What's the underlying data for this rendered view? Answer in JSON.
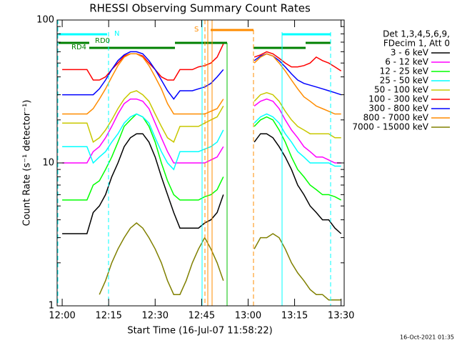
{
  "chart_data": {
    "type": "line",
    "title": "RHESSI Observing Summary Count Rates",
    "x_label": "Start Time (16-Jul-07 11:58:22)",
    "y_label": "Count Rate (s⁻¹ detector⁻¹)",
    "timestamp": "16-Oct-2021 01:35",
    "legend_header": [
      "Det 1,3,4,5,6,9,",
      "FDecim 1, Att 0"
    ],
    "annotations": [
      "N",
      "RD0",
      "RD4",
      "S"
    ],
    "log_y": true,
    "legend": "right",
    "xlim": [
      "11:58:22",
      "13:31"
    ],
    "xticks": [
      "12:00",
      "12:15",
      "12:30",
      "12:45",
      "13:00",
      "13:15",
      "13:30"
    ],
    "ylim": [
      1,
      100
    ],
    "yticks": [
      1,
      10,
      100
    ],
    "x": [
      "12:00",
      "12:02",
      "12:04",
      "12:06",
      "12:08",
      "12:10",
      "12:12",
      "12:14",
      "12:16",
      "12:18",
      "12:20",
      "12:22",
      "12:24",
      "12:26",
      "12:28",
      "12:30",
      "12:32",
      "12:34",
      "12:36",
      "12:38",
      "12:40",
      "12:42",
      "12:44",
      "12:46",
      "12:48",
      "12:50",
      "12:52",
      "12:54",
      "12:56",
      "12:58",
      "13:00",
      "13:02",
      "13:04",
      "13:06",
      "13:08",
      "13:10",
      "13:12",
      "13:14",
      "13:16",
      "13:18",
      "13:20",
      "13:22",
      "13:24",
      "13:26",
      "13:28",
      "13:30"
    ],
    "series": [
      {
        "name": "3 - 6 keV",
        "color": "#000000",
        "values": [
          3.2,
          3.2,
          3.2,
          3.2,
          3.2,
          4.5,
          5,
          6,
          8,
          10,
          13,
          15,
          16,
          16,
          14,
          11,
          8,
          6,
          4.5,
          3.5,
          3.5,
          3.5,
          3.5,
          3.8,
          4,
          4.5,
          6,
          null,
          null,
          null,
          null,
          14,
          16,
          16,
          15,
          13,
          11,
          9,
          7,
          6,
          5,
          4.5,
          4,
          4,
          3.5,
          3.2
        ]
      },
      {
        "name": "6 - 12 keV",
        "color": "#ff00ff",
        "values": [
          10,
          10,
          10,
          10,
          10,
          12,
          13,
          15,
          18,
          22,
          26,
          28,
          28,
          27,
          24,
          19,
          15,
          12,
          10,
          10,
          10,
          10,
          10,
          10,
          10.5,
          11,
          13,
          null,
          null,
          null,
          null,
          25,
          27,
          28,
          27,
          24,
          20,
          17,
          15,
          13,
          12,
          11,
          11,
          10.5,
          10,
          10
        ]
      },
      {
        "name": "12 - 25 keV",
        "color": "#00ff00",
        "values": [
          5.5,
          5.5,
          5.5,
          5.5,
          5.5,
          7,
          7.5,
          9,
          11,
          14,
          18,
          20,
          22,
          21,
          18,
          14,
          10,
          7.5,
          6,
          5.5,
          5.5,
          5.5,
          5.5,
          5.8,
          6,
          6.5,
          8,
          null,
          null,
          null,
          null,
          18,
          20,
          21,
          20,
          17,
          14,
          11,
          9,
          8,
          7,
          6.5,
          6,
          6,
          5.8,
          5.5
        ]
      },
      {
        "name": "25 - 50 keV",
        "color": "#00ffff",
        "values": [
          13,
          13,
          13,
          13,
          13,
          10,
          11,
          12,
          14,
          16,
          19,
          21,
          22,
          21,
          19,
          15,
          12,
          10,
          9,
          12,
          12,
          12,
          12,
          12.5,
          13,
          14,
          17,
          null,
          null,
          null,
          null,
          19,
          21,
          22,
          21,
          19,
          16,
          14,
          12,
          11,
          10,
          10,
          10,
          10,
          9.5,
          9.5
        ]
      },
      {
        "name": "50 - 100 keV",
        "color": "#c8c800",
        "values": [
          19,
          19,
          19,
          19,
          19,
          14,
          15,
          17,
          20,
          24,
          28,
          31,
          32,
          30,
          27,
          22,
          18,
          15,
          14,
          18,
          18,
          18,
          18,
          19,
          20,
          21,
          25,
          null,
          null,
          null,
          null,
          27,
          30,
          31,
          30,
          27,
          23,
          20,
          18,
          17,
          16,
          16,
          16,
          16,
          15,
          15
        ]
      },
      {
        "name": "100 - 300 keV",
        "color": "#ff0000",
        "values": [
          45,
          45,
          45,
          45,
          45,
          38,
          38,
          40,
          45,
          50,
          56,
          58,
          58,
          56,
          50,
          45,
          40,
          38,
          38,
          45,
          45,
          45,
          47,
          48,
          50,
          55,
          68,
          null,
          null,
          null,
          null,
          55,
          57,
          60,
          58,
          54,
          50,
          47,
          47,
          48,
          50,
          55,
          52,
          50,
          47,
          44
        ]
      },
      {
        "name": "300 - 800 keV",
        "color": "#0000ff",
        "values": [
          30,
          30,
          30,
          30,
          30,
          30,
          33,
          38,
          45,
          52,
          57,
          60,
          60,
          58,
          52,
          45,
          38,
          32,
          28,
          32,
          32,
          32,
          33,
          34,
          36,
          40,
          45,
          null,
          null,
          null,
          null,
          52,
          56,
          58,
          56,
          52,
          47,
          42,
          38,
          36,
          35,
          34,
          33,
          32,
          31,
          30
        ]
      },
      {
        "name": "800 - 7000 keV",
        "color": "#ff8c00",
        "values": [
          22,
          22,
          22,
          22,
          22,
          24,
          28,
          33,
          40,
          48,
          55,
          58,
          58,
          55,
          48,
          40,
          33,
          26,
          22,
          22,
          22,
          22,
          22,
          22,
          23,
          24,
          28,
          null,
          null,
          null,
          null,
          50,
          55,
          58,
          56,
          50,
          44,
          38,
          33,
          29,
          27,
          25,
          24,
          23,
          22,
          22
        ]
      },
      {
        "name": "7000 - 15000 keV",
        "color": "#808000",
        "values": [
          null,
          null,
          null,
          null,
          null,
          null,
          1.2,
          1.5,
          2,
          2.5,
          3,
          3.5,
          3.8,
          3.5,
          3,
          2.5,
          2,
          1.5,
          1.2,
          1.2,
          1.5,
          2,
          2.5,
          3,
          2.5,
          2,
          1.5,
          null,
          null,
          null,
          null,
          2.5,
          3,
          3,
          3.2,
          3,
          2.5,
          2,
          1.7,
          1.5,
          1.3,
          1.2,
          1.2,
          1.1,
          1.1,
          1.1
        ]
      }
    ]
  }
}
